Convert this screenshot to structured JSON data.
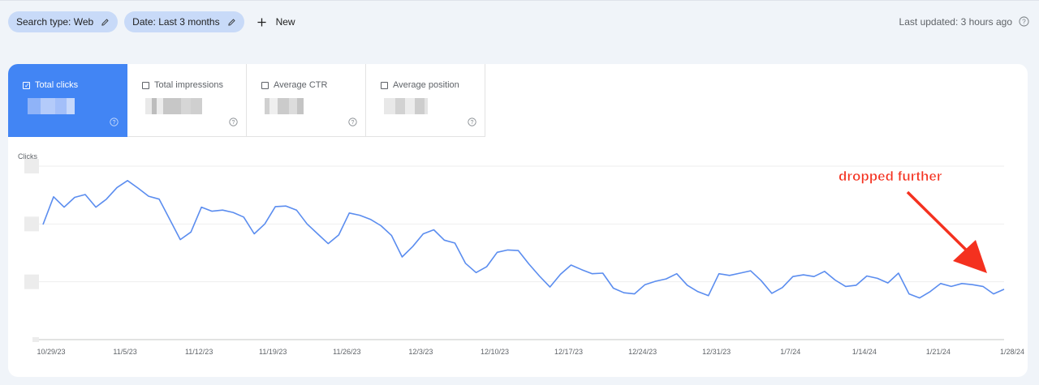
{
  "filters": {
    "search_type": "Search type: Web",
    "date": "Date: Last 3 months",
    "new_label": "New"
  },
  "last_updated": "Last updated: 3 hours ago",
  "metrics": [
    {
      "label": "Total clicks",
      "checked": true
    },
    {
      "label": "Total impressions",
      "checked": false
    },
    {
      "label": "Average CTR",
      "checked": false
    },
    {
      "label": "Average position",
      "checked": false
    }
  ],
  "colors": {
    "accent": "#4285f4",
    "line": "#5b8def",
    "annotation": "#f4311f"
  },
  "chart_data": {
    "type": "line",
    "ylabel": "Clicks",
    "title": "",
    "x_tick_labels": [
      "10/29/23",
      "11/5/23",
      "11/12/23",
      "11/19/23",
      "11/26/23",
      "12/3/23",
      "12/10/23",
      "12/17/23",
      "12/24/23",
      "12/31/23",
      "1/7/24",
      "1/14/24",
      "1/21/24",
      "1/28/24"
    ],
    "x_start": "10/29/23",
    "x_end": "1/29/24",
    "y_tick_labels_redacted": true,
    "ylim_relative": [
      0,
      3
    ],
    "grid": true,
    "series": [
      {
        "values": [
          1.99,
          2.47,
          2.29,
          2.46,
          2.51,
          2.29,
          2.43,
          2.63,
          2.75,
          2.62,
          2.48,
          2.43,
          2.08,
          1.73,
          1.86,
          2.29,
          2.22,
          2.24,
          2.2,
          2.12,
          1.83,
          2.0,
          2.3,
          2.31,
          2.24,
          2.0,
          1.83,
          1.66,
          1.81,
          2.19,
          2.15,
          2.08,
          1.97,
          1.8,
          1.43,
          1.61,
          1.83,
          1.9,
          1.72,
          1.67,
          1.32,
          1.16,
          1.26,
          1.51,
          1.55,
          1.54,
          1.31,
          1.1,
          0.91,
          1.13,
          1.29,
          1.21,
          1.14,
          1.15,
          0.89,
          0.81,
          0.79,
          0.95,
          1.01,
          1.05,
          1.14,
          0.94,
          0.83,
          0.76,
          1.14,
          1.11,
          1.15,
          1.19,
          1.02,
          0.8,
          0.9,
          1.09,
          1.12,
          1.09,
          1.18,
          1.03,
          0.92,
          0.94,
          1.1,
          1.06,
          0.98,
          1.15,
          0.79,
          0.72,
          0.83,
          0.97,
          0.92,
          0.97,
          0.95,
          0.92,
          0.79,
          0.87
        ]
      }
    ],
    "annotations": [
      {
        "text": "dropped further"
      }
    ]
  }
}
